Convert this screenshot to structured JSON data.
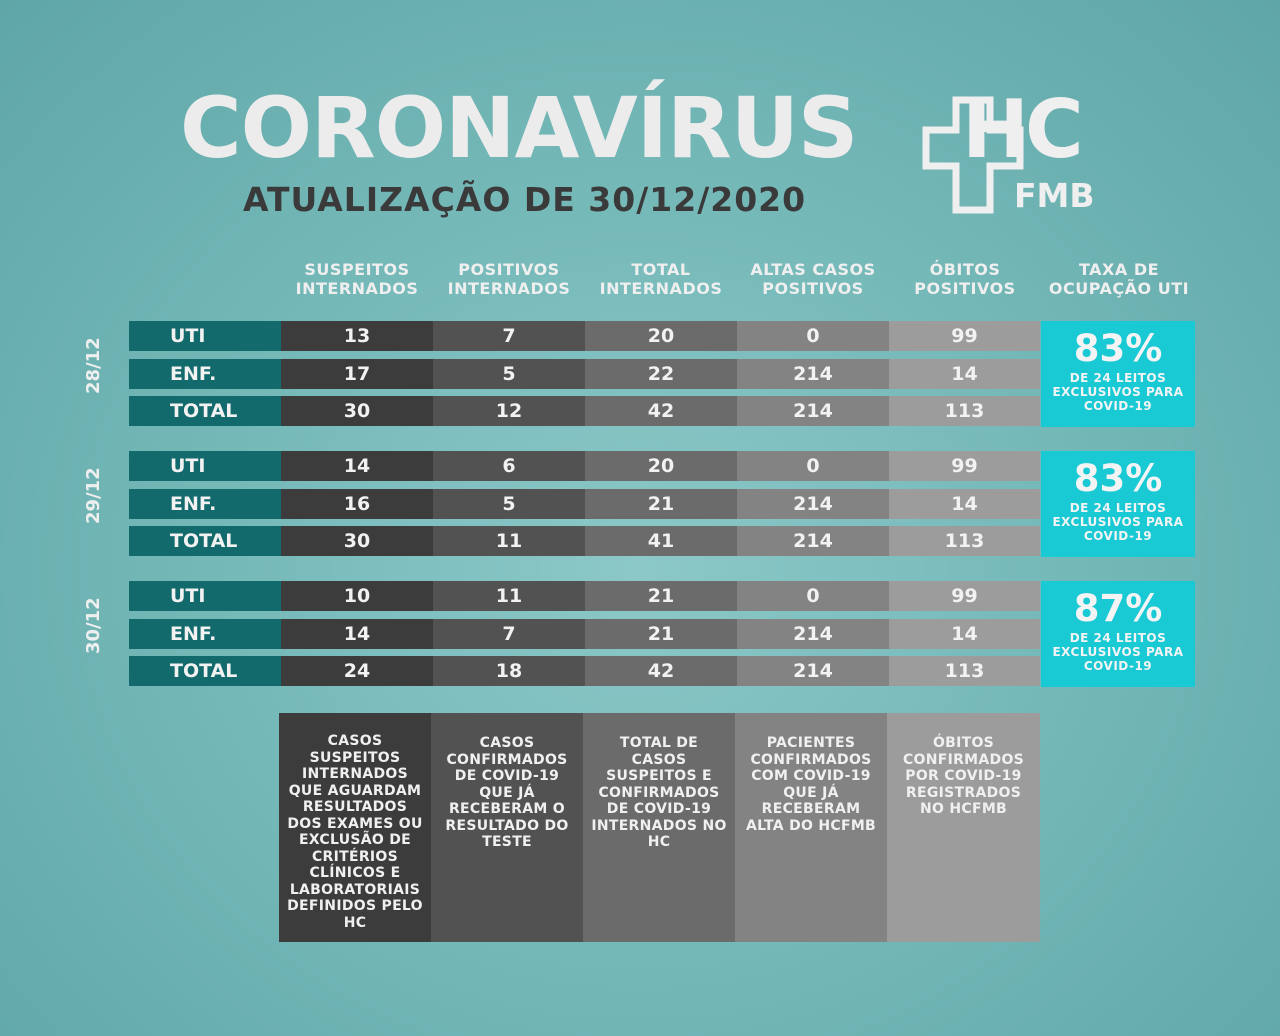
{
  "header": {
    "title": "CORONAVÍRUS",
    "subtitle": "ATUALIZAÇÃO DE 30/12/2020",
    "logo_main": "HC",
    "logo_sub": "FMB"
  },
  "columns": [
    "SUSPEITOS INTERNADOS",
    "POSITIVOS INTERNADOS",
    "TOTAL INTERNADOS",
    "ALTAS CASOS POSITIVOS",
    "ÓBITOS POSITIVOS",
    "TAXA DE OCUPAÇÃO UTI"
  ],
  "groups": [
    {
      "date": "28/12",
      "rows": [
        {
          "label": "UTI",
          "values": [
            "13",
            "7",
            "20",
            "0",
            "99"
          ]
        },
        {
          "label": "ENF.",
          "values": [
            "17",
            "5",
            "22",
            "214",
            "14"
          ]
        },
        {
          "label": "TOTAL",
          "values": [
            "30",
            "12",
            "42",
            "214",
            "113"
          ]
        }
      ],
      "rate": {
        "value": "83%",
        "desc": "DE 24 LEITOS EXCLUSIVOS PARA COVID-19"
      }
    },
    {
      "date": "29/12",
      "rows": [
        {
          "label": "UTI",
          "values": [
            "14",
            "6",
            "20",
            "0",
            "99"
          ]
        },
        {
          "label": "ENF.",
          "values": [
            "16",
            "5",
            "21",
            "214",
            "14"
          ]
        },
        {
          "label": "TOTAL",
          "values": [
            "30",
            "11",
            "41",
            "214",
            "113"
          ]
        }
      ],
      "rate": {
        "value": "83%",
        "desc": "DE 24 LEITOS EXCLUSIVOS PARA COVID-19"
      }
    },
    {
      "date": "30/12",
      "rows": [
        {
          "label": "UTI",
          "values": [
            "10",
            "11",
            "21",
            "0",
            "99"
          ]
        },
        {
          "label": "ENF.",
          "values": [
            "14",
            "7",
            "21",
            "214",
            "14"
          ]
        },
        {
          "label": "TOTAL",
          "values": [
            "24",
            "18",
            "42",
            "214",
            "113"
          ]
        }
      ],
      "rate": {
        "value": "87%",
        "desc": "DE 24 LEITOS EXCLUSIVOS PARA COVID-19"
      }
    }
  ],
  "legend": [
    "CASOS SUSPEITOS INTERNADOS QUE AGUARDAM RESULTADOS DOS EXAMES OU EXCLUSÃO DE CRITÉRIOS CLÍNICOS E LABORATORIAIS DEFINIDOS PELO HC",
    "CASOS CONFIRMADOS DE COVID-19 QUE JÁ RECEBERAM O RESULTADO DO TESTE",
    "TOTAL DE CASOS SUSPEITOS E CONFIRMADOS DE COVID-19 INTERNADOS NO HC",
    "PACIENTES CONFIRMADOS COM COVID-19 QUE JÁ RECEBERAM ALTA DO HCFMB",
    "ÓBITOS CONFIRMADOS POR COVID-19 REGISTRADOS NO HCFMB"
  ],
  "colors": {
    "teal_label": "#136a6d",
    "rate_box": "#19c9d4",
    "title": "#ececec",
    "subtitle": "#3a3a3a"
  }
}
